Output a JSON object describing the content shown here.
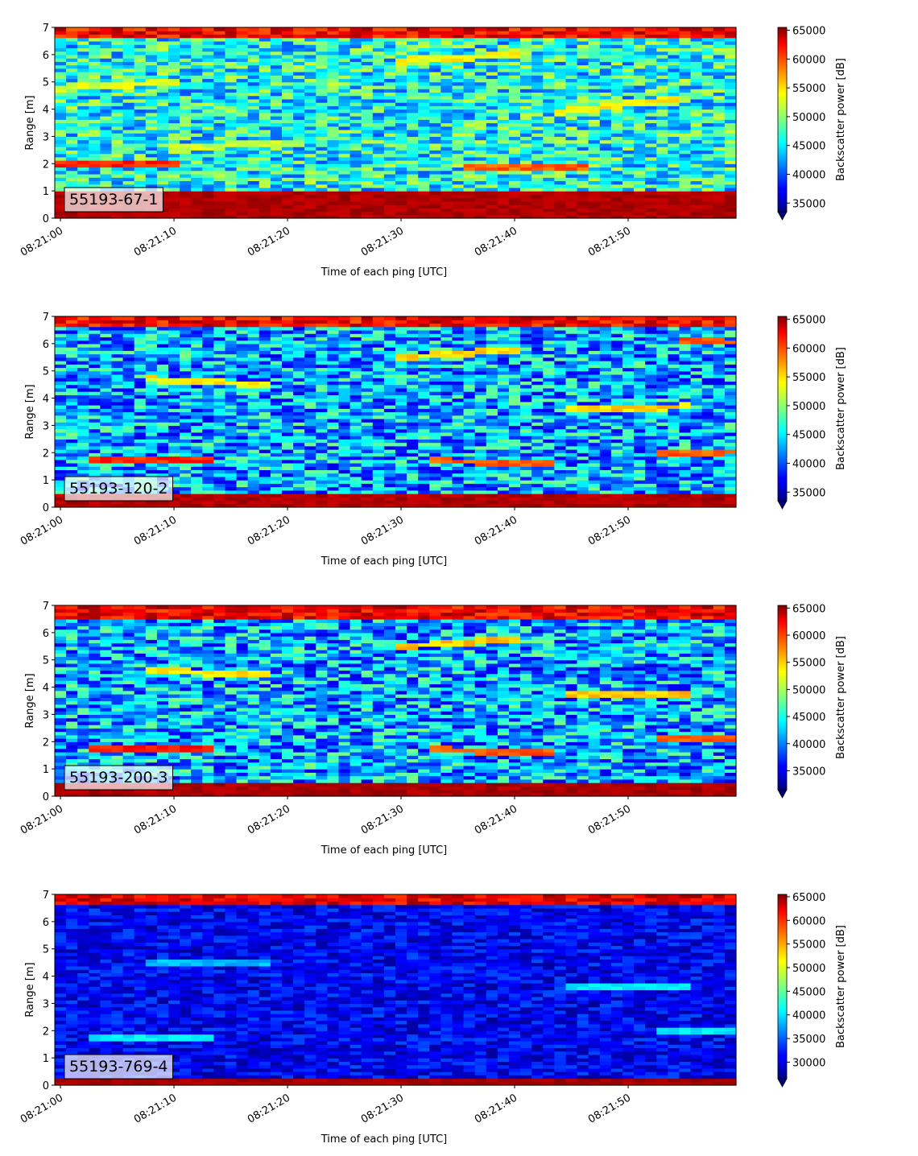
{
  "chart_data": [
    {
      "type": "heatmap",
      "id": "panel-1",
      "label": "55193-67-1",
      "xlabel": "Time of each ping [UTC]",
      "ylabel": "Range [m]",
      "x_ticks": [
        "08:21:00",
        "08:21:10",
        "08:21:20",
        "08:21:30",
        "08:21:40",
        "08:21:50"
      ],
      "x_tick_seconds": [
        0,
        10,
        20,
        30,
        40,
        50
      ],
      "x_range_seconds": [
        -0.5,
        59.5
      ],
      "y_ticks": [
        0,
        1,
        2,
        3,
        4,
        5,
        6,
        7
      ],
      "ylim": [
        0,
        7
      ],
      "colorbar": {
        "label": "Backscatter power [dB]",
        "ticks": [
          35000,
          40000,
          45000,
          50000,
          55000,
          60000,
          65000
        ],
        "range": [
          33500,
          65500
        ],
        "extend": "min",
        "colormap": "jet"
      },
      "pattern": {
        "bottom_band_top": 1.0,
        "top_band_bottom": 6.6,
        "base": 46000,
        "spread": 6000,
        "tracks": [
          [
            0.0,
            2.0,
            2.0,
            62000
          ],
          [
            0.0,
            4.8,
            5.0,
            54000
          ],
          [
            10.0,
            2.6,
            2.8,
            53000
          ],
          [
            44.0,
            3.9,
            4.4,
            55000
          ],
          [
            30.0,
            5.8,
            6.0,
            55000
          ],
          [
            36.0,
            1.9,
            1.9,
            60000
          ]
        ]
      }
    },
    {
      "type": "heatmap",
      "id": "panel-2",
      "label": "55193-120-2",
      "xlabel": "Time of each ping [UTC]",
      "ylabel": "Range [m]",
      "x_ticks": [
        "08:21:00",
        "08:21:10",
        "08:21:20",
        "08:21:30",
        "08:21:40",
        "08:21:50"
      ],
      "x_tick_seconds": [
        0,
        10,
        20,
        30,
        40,
        50
      ],
      "x_range_seconds": [
        -0.5,
        59.5
      ],
      "y_ticks": [
        0,
        1,
        2,
        3,
        4,
        5,
        6,
        7
      ],
      "ylim": [
        0,
        7
      ],
      "colorbar": {
        "label": "Backscatter power [dB]",
        "ticks": [
          35000,
          40000,
          45000,
          50000,
          55000,
          60000,
          65000
        ],
        "range": [
          33500,
          65500
        ],
        "extend": "min",
        "colormap": "jet"
      },
      "pattern": {
        "bottom_band_top": 0.45,
        "top_band_bottom": 6.6,
        "base": 43000,
        "spread": 6500,
        "tracks": [
          [
            3.0,
            1.8,
            1.8,
            62000
          ],
          [
            8.0,
            4.7,
            4.5,
            55000
          ],
          [
            30.0,
            5.5,
            5.8,
            56000
          ],
          [
            33.0,
            1.7,
            1.65,
            60000
          ],
          [
            45.0,
            3.6,
            3.7,
            56000
          ],
          [
            53.0,
            2.0,
            2.1,
            60000
          ],
          [
            55.0,
            6.1,
            6.0,
            60000
          ]
        ]
      }
    },
    {
      "type": "heatmap",
      "id": "panel-3",
      "label": "55193-200-3",
      "xlabel": "Time of each ping [UTC]",
      "ylabel": "Range [m]",
      "x_ticks": [
        "08:21:00",
        "08:21:10",
        "08:21:20",
        "08:21:30",
        "08:21:40",
        "08:21:50"
      ],
      "x_tick_seconds": [
        0,
        10,
        20,
        30,
        40,
        50
      ],
      "x_range_seconds": [
        -0.5,
        59.5
      ],
      "y_ticks": [
        0,
        1,
        2,
        3,
        4,
        5,
        6,
        7
      ],
      "ylim": [
        0,
        7
      ],
      "colorbar": {
        "label": "Backscatter power [dB]",
        "ticks": [
          35000,
          40000,
          45000,
          50000,
          55000,
          60000,
          65000
        ],
        "range": [
          31500,
          65500
        ],
        "extend": "min",
        "colormap": "jet"
      },
      "pattern": {
        "bottom_band_top": 0.5,
        "top_band_bottom": 6.55,
        "base": 41500,
        "spread": 7000,
        "tracks": [
          [
            3.0,
            1.8,
            1.8,
            62000
          ],
          [
            8.0,
            4.6,
            4.5,
            55000
          ],
          [
            30.0,
            5.5,
            5.8,
            56000
          ],
          [
            33.0,
            1.7,
            1.65,
            60000
          ],
          [
            45.0,
            3.7,
            3.7,
            56000
          ],
          [
            53.0,
            2.1,
            2.1,
            60000
          ]
        ]
      }
    },
    {
      "type": "heatmap",
      "id": "panel-4",
      "label": "55193-769-4",
      "xlabel": "Time of each ping [UTC]",
      "ylabel": "Range [m]",
      "x_ticks": [
        "08:21:00",
        "08:21:10",
        "08:21:20",
        "08:21:30",
        "08:21:40",
        "08:21:50"
      ],
      "x_tick_seconds": [
        0,
        10,
        20,
        30,
        40,
        50
      ],
      "x_range_seconds": [
        -0.5,
        59.5
      ],
      "y_ticks": [
        0,
        1,
        2,
        3,
        4,
        5,
        6,
        7
      ],
      "ylim": [
        0,
        7
      ],
      "colorbar": {
        "label": "Backscatter power [dB]",
        "ticks": [
          30000,
          35000,
          40000,
          45000,
          50000,
          55000,
          60000,
          65000
        ],
        "range": [
          26500,
          65500
        ],
        "extend": "min",
        "colormap": "jet"
      },
      "pattern": {
        "bottom_band_top": 0.25,
        "top_band_bottom": 6.6,
        "base": 31000,
        "spread": 3500,
        "tracks": [
          [
            3.0,
            1.8,
            1.8,
            42000
          ],
          [
            8.0,
            4.5,
            4.5,
            40000
          ],
          [
            45.0,
            3.6,
            3.6,
            42000
          ],
          [
            53.0,
            2.0,
            2.0,
            42000
          ]
        ]
      }
    }
  ]
}
